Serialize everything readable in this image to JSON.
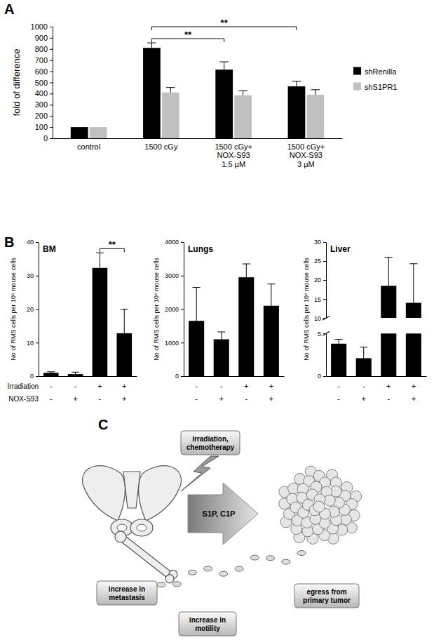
{
  "panel_labels": [
    "A",
    "B",
    "C"
  ],
  "chart_data": [
    {
      "type": "bar",
      "categories": [
        "control",
        "1500 cGy",
        "1500 cGy+\nNOX-S93\n1.5 µM",
        "1500 cGy+\nNOX-S93\n3 µM"
      ],
      "ylabel": "fold of difference",
      "series": [
        {
          "name": "shRenilla",
          "color": "#000000",
          "values": [
            100,
            810,
            615,
            465
          ],
          "errors": [
            null,
            45,
            70,
            45
          ]
        },
        {
          "name": "shS1PR1",
          "color": "#c0c0c0",
          "values": [
            100,
            410,
            385,
            390
          ],
          "errors": [
            null,
            45,
            40,
            45
          ]
        }
      ],
      "ylim": [
        0,
        1000
      ],
      "yticks": [
        0,
        100,
        200,
        300,
        400,
        500,
        600,
        700,
        800,
        900,
        1000
      ],
      "grid": false,
      "legend": "right",
      "annotations": [
        {
          "text": "**",
          "series": "shRenilla",
          "from": 1,
          "to": 2
        },
        {
          "text": "**",
          "series": "shRenilla",
          "from": 1,
          "to": 3
        }
      ]
    },
    {
      "type": "bar",
      "title": "BM",
      "categories": [
        null,
        null,
        null,
        null
      ],
      "values": [
        1.0,
        0.6,
        32.3,
        12.8
      ],
      "errors": [
        0.3,
        0.6,
        4.5,
        7.2
      ],
      "color": "#000000",
      "ylabel": "No of RMS cells per 10⁶ mouse cells",
      "ylim": [
        0,
        40
      ],
      "yticks": [
        0,
        10,
        20,
        30,
        40
      ],
      "grid": false,
      "x_row_labels": [
        "Irradiation",
        "NOX-S93"
      ],
      "x_rows": [
        [
          "-",
          "-",
          "+",
          "+"
        ],
        [
          "-",
          "+",
          "-",
          "+"
        ]
      ],
      "annotations": [
        {
          "text": "**",
          "from": 2,
          "to": 3
        }
      ]
    },
    {
      "type": "bar",
      "title": "Lungs",
      "categories": [
        null,
        null,
        null,
        null
      ],
      "values": [
        1650,
        1100,
        2950,
        2100
      ],
      "errors": [
        1000,
        220,
        400,
        650
      ],
      "color": "#000000",
      "ylabel": "No of RMS cells per 10⁶ mouse cells",
      "ylim": [
        0,
        4000
      ],
      "yticks": [
        0,
        1000,
        2000,
        3000,
        4000
      ],
      "grid": false,
      "x_rows": [
        [
          "-",
          "-",
          "+",
          "+"
        ],
        [
          "-",
          "+",
          "-",
          "+"
        ]
      ]
    },
    {
      "type": "bar",
      "title": "Liver",
      "categories": [
        null,
        null,
        null,
        null
      ],
      "values": [
        3.8,
        2.1,
        18.5,
        14
      ],
      "errors": [
        0.5,
        1.3,
        7.5,
        10.3
      ],
      "color": "#000000",
      "ylabel": "No of RMS cells per 10⁶ mouse cells",
      "ylim": [
        0,
        30
      ],
      "yticks": [
        0,
        5,
        10,
        15,
        20,
        25,
        30
      ],
      "y_break": [
        5,
        10
      ],
      "grid": false,
      "x_rows": [
        [
          "-",
          "-",
          "+",
          "+"
        ],
        [
          "-",
          "+",
          "-",
          "+"
        ]
      ]
    }
  ],
  "diagram": {
    "stimulus": "irradiation,\nchemotherapy",
    "arrow_label": "S1P, C1P",
    "effects": [
      "increase in\nmetastasis",
      "increase in\nmotility",
      "egress from\nprimary tumor"
    ]
  }
}
